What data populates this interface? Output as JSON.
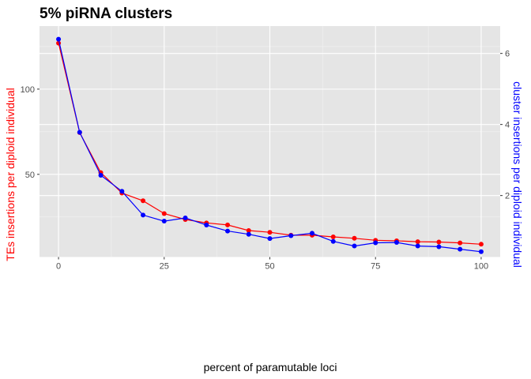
{
  "chart_data": {
    "type": "line",
    "title": "5% piRNA clusters",
    "xlabel": "percent of paramutable loci",
    "ylabel_left": "TEs insertions per diploid individual",
    "ylabel_right": "cluster insertions per diploid individual",
    "x": [
      0,
      5,
      10,
      15,
      20,
      25,
      30,
      35,
      40,
      45,
      50,
      55,
      60,
      65,
      70,
      75,
      80,
      85,
      90,
      95,
      100
    ],
    "xlim": [
      -4.5,
      104.5
    ],
    "ylim_left": [
      1.5,
      137
    ],
    "ylim_right": [
      0.27,
      6.77
    ],
    "x_ticks": [
      0,
      25,
      50,
      75,
      100
    ],
    "y_ticks_left": [
      50,
      100
    ],
    "y_ticks_right": [
      2,
      4,
      6
    ],
    "grid": true,
    "legend": "none",
    "series": [
      {
        "axis": "left",
        "color": "#ff0000",
        "values": [
          127,
          74.5,
          51,
          39,
          34.5,
          27,
          23.5,
          21.5,
          20.3,
          17,
          16,
          14.3,
          14.3,
          13.3,
          12.5,
          11.3,
          11,
          10.5,
          10.3,
          9.8,
          9
        ]
      },
      {
        "axis": "right",
        "color": "#0000ff",
        "values": [
          6.4,
          3.78,
          2.57,
          2.12,
          1.45,
          1.28,
          1.37,
          1.17,
          1.0,
          0.91,
          0.79,
          0.87,
          0.94,
          0.71,
          0.58,
          0.67,
          0.68,
          0.58,
          0.56,
          0.49,
          0.42
        ]
      }
    ]
  }
}
